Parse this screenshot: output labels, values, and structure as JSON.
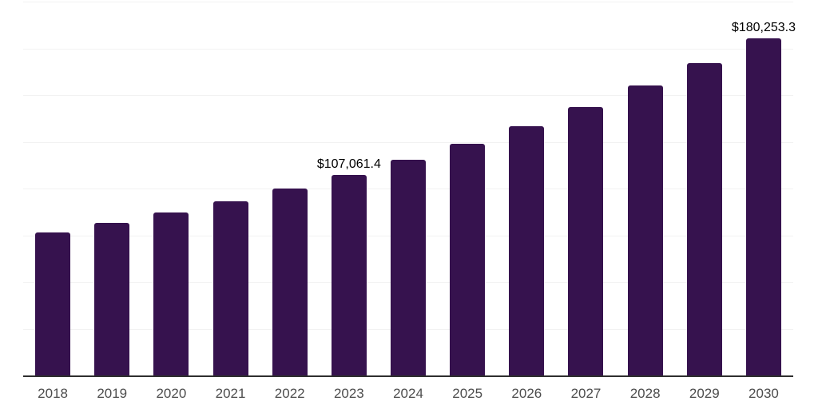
{
  "chart": {
    "background": "#ffffff",
    "bar_color": "#36124E",
    "axis_line_color": "#2e2e2e",
    "gridline_color": "#f2f2f2",
    "tick_label_color": "#4d4d4d",
    "data_label_color": "#000000"
  },
  "chart_data": {
    "type": "bar",
    "title": "",
    "xlabel": "",
    "ylabel": "",
    "categories": [
      "2018",
      "2019",
      "2020",
      "2021",
      "2022",
      "2023",
      "2024",
      "2025",
      "2026",
      "2027",
      "2028",
      "2029",
      "2030"
    ],
    "values": [
      76400,
      81600,
      87300,
      93300,
      100200,
      107061.4,
      115300,
      123900,
      133400,
      143800,
      155200,
      167000,
      180253.3
    ],
    "ylim": [
      0,
      200000
    ],
    "gridline_interval": 25000,
    "grid": true,
    "legend": "none",
    "y_tick_labels_visible": false,
    "data_labels": [
      {
        "category": "2023",
        "text": "$107,061.4"
      },
      {
        "category": "2030",
        "text": "$180,253.3"
      }
    ]
  }
}
